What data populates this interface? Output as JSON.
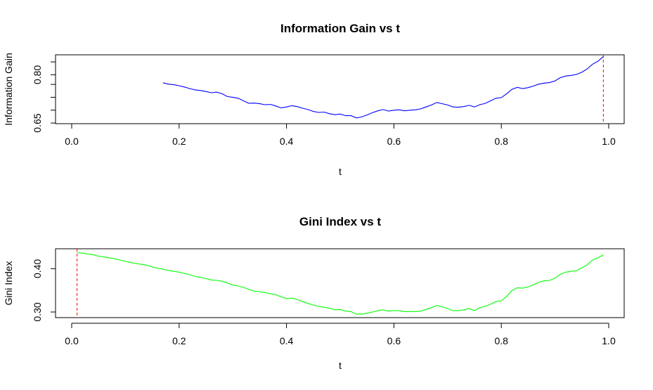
{
  "chart_data": [
    {
      "type": "line",
      "title": "Information Gain vs t",
      "xlabel": "t",
      "ylabel": "Information Gain",
      "xlim": [
        0,
        1
      ],
      "ylim": [
        0.648,
        0.862
      ],
      "xticks": [
        "0.0",
        "0.2",
        "0.4",
        "0.6",
        "0.8",
        "1.0"
      ],
      "yticks": [
        "0.65",
        "0.80"
      ],
      "ytick_values": [
        0.65,
        0.8
      ],
      "minor_yticks": [
        0.69,
        0.73,
        0.77,
        0.84
      ],
      "line_color": "#0000ff",
      "vline": {
        "x": 0.99,
        "color": "#ff0000",
        "style": "dashed"
      },
      "x": [
        0.17,
        0.18,
        0.19,
        0.2,
        0.21,
        0.22,
        0.23,
        0.24,
        0.25,
        0.26,
        0.27,
        0.28,
        0.29,
        0.3,
        0.31,
        0.32,
        0.33,
        0.34,
        0.35,
        0.36,
        0.37,
        0.38,
        0.39,
        0.4,
        0.41,
        0.42,
        0.43,
        0.44,
        0.45,
        0.46,
        0.47,
        0.48,
        0.49,
        0.5,
        0.51,
        0.52,
        0.53,
        0.54,
        0.55,
        0.56,
        0.57,
        0.58,
        0.59,
        0.6,
        0.61,
        0.62,
        0.63,
        0.64,
        0.65,
        0.66,
        0.67,
        0.68,
        0.69,
        0.7,
        0.71,
        0.72,
        0.73,
        0.74,
        0.75,
        0.76,
        0.77,
        0.78,
        0.79,
        0.8,
        0.81,
        0.82,
        0.83,
        0.84,
        0.85,
        0.86,
        0.87,
        0.88,
        0.89,
        0.9,
        0.91,
        0.92,
        0.93,
        0.94,
        0.95,
        0.96,
        0.97,
        0.98,
        0.99
      ],
      "y": [
        0.775,
        0.771,
        0.769,
        0.766,
        0.762,
        0.757,
        0.753,
        0.751,
        0.748,
        0.744,
        0.746,
        0.741,
        0.732,
        0.73,
        0.727,
        0.719,
        0.711,
        0.712,
        0.71,
        0.707,
        0.708,
        0.703,
        0.697,
        0.7,
        0.704,
        0.701,
        0.696,
        0.692,
        0.686,
        0.683,
        0.684,
        0.679,
        0.676,
        0.678,
        0.673,
        0.673,
        0.666,
        0.669,
        0.675,
        0.682,
        0.688,
        0.692,
        0.687,
        0.69,
        0.691,
        0.688,
        0.69,
        0.691,
        0.694,
        0.7,
        0.706,
        0.714,
        0.71,
        0.706,
        0.7,
        0.699,
        0.701,
        0.705,
        0.7,
        0.707,
        0.711,
        0.719,
        0.727,
        0.729,
        0.741,
        0.755,
        0.761,
        0.757,
        0.76,
        0.765,
        0.771,
        0.774,
        0.776,
        0.781,
        0.791,
        0.796,
        0.798,
        0.801,
        0.808,
        0.818,
        0.833,
        0.842,
        0.857
      ]
    },
    {
      "type": "line",
      "title": "Gini Index vs t",
      "xlabel": "t",
      "ylabel": "Gini Index",
      "xlim": [
        0,
        1
      ],
      "ylim": [
        0.287,
        0.446
      ],
      "xticks": [
        "0.0",
        "0.2",
        "0.4",
        "0.6",
        "0.8",
        "1.0"
      ],
      "yticks": [
        "0.30",
        "0.40"
      ],
      "ytick_values": [
        0.3,
        0.4
      ],
      "minor_yticks": [],
      "line_color": "#00ff00",
      "vline": {
        "x": 0.01,
        "color": "#ff0000",
        "style": "dashed"
      },
      "x": [
        0.01,
        0.02,
        0.03,
        0.04,
        0.05,
        0.06,
        0.07,
        0.08,
        0.09,
        0.1,
        0.11,
        0.12,
        0.13,
        0.14,
        0.15,
        0.16,
        0.17,
        0.18,
        0.19,
        0.2,
        0.21,
        0.22,
        0.23,
        0.24,
        0.25,
        0.26,
        0.27,
        0.28,
        0.29,
        0.3,
        0.31,
        0.32,
        0.33,
        0.34,
        0.35,
        0.36,
        0.37,
        0.38,
        0.39,
        0.4,
        0.41,
        0.42,
        0.43,
        0.44,
        0.45,
        0.46,
        0.47,
        0.48,
        0.49,
        0.5,
        0.51,
        0.52,
        0.53,
        0.54,
        0.55,
        0.56,
        0.57,
        0.58,
        0.59,
        0.6,
        0.61,
        0.62,
        0.63,
        0.64,
        0.65,
        0.66,
        0.67,
        0.68,
        0.69,
        0.7,
        0.71,
        0.72,
        0.73,
        0.74,
        0.75,
        0.76,
        0.77,
        0.78,
        0.79,
        0.8,
        0.81,
        0.82,
        0.83,
        0.84,
        0.85,
        0.86,
        0.87,
        0.88,
        0.89,
        0.9,
        0.91,
        0.92,
        0.93,
        0.94,
        0.95,
        0.96,
        0.97,
        0.98,
        0.99
      ],
      "y": [
        0.437,
        0.436,
        0.434,
        0.432,
        0.429,
        0.427,
        0.425,
        0.423,
        0.42,
        0.417,
        0.414,
        0.412,
        0.41,
        0.408,
        0.404,
        0.401,
        0.399,
        0.396,
        0.394,
        0.392,
        0.389,
        0.386,
        0.382,
        0.38,
        0.377,
        0.374,
        0.373,
        0.371,
        0.367,
        0.362,
        0.36,
        0.357,
        0.352,
        0.348,
        0.347,
        0.345,
        0.342,
        0.34,
        0.335,
        0.331,
        0.332,
        0.329,
        0.324,
        0.32,
        0.316,
        0.313,
        0.311,
        0.309,
        0.305,
        0.306,
        0.302,
        0.301,
        0.295,
        0.295,
        0.297,
        0.3,
        0.303,
        0.305,
        0.302,
        0.303,
        0.303,
        0.301,
        0.301,
        0.301,
        0.302,
        0.306,
        0.31,
        0.315,
        0.312,
        0.308,
        0.303,
        0.303,
        0.305,
        0.308,
        0.303,
        0.31,
        0.313,
        0.318,
        0.324,
        0.326,
        0.336,
        0.35,
        0.356,
        0.355,
        0.358,
        0.363,
        0.369,
        0.372,
        0.373,
        0.378,
        0.387,
        0.392,
        0.394,
        0.395,
        0.402,
        0.409,
        0.42,
        0.425,
        0.432
      ]
    }
  ]
}
